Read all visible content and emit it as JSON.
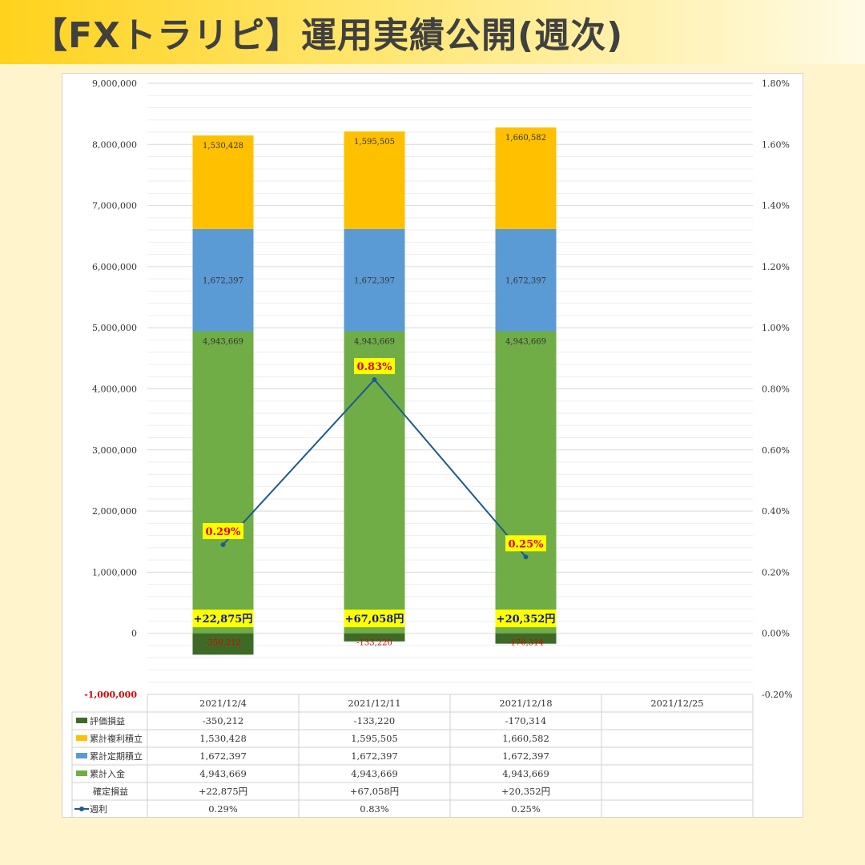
{
  "title": "【FXトラリピ】運用実績公開(週次)",
  "chart_data": {
    "type": "bar",
    "stacked": true,
    "categories": [
      "2021/12/4",
      "2021/12/11",
      "2021/12/18",
      "2021/12/25"
    ],
    "series": [
      {
        "name": "評価損益",
        "color": "#3d6b26",
        "values": [
          -350212,
          -133220,
          -170314,
          null
        ],
        "labels": [
          "-350,212",
          "-133,220",
          "-170,314",
          ""
        ],
        "table": [
          "-350,212",
          "-133,220",
          "-170,314",
          ""
        ]
      },
      {
        "name": "累計複利積立",
        "color": "#ffc000",
        "values": [
          1530428,
          1595505,
          1660582,
          null
        ],
        "labels": [
          "1,530,428",
          "1,595,505",
          "1,660,582",
          ""
        ],
        "table": [
          "1,530,428",
          "1,595,505",
          "1,660,582",
          ""
        ]
      },
      {
        "name": "累計定期積立",
        "color": "#5b9bd5",
        "values": [
          1672397,
          1672397,
          1672397,
          null
        ],
        "labels": [
          "1,672,397",
          "1,672,397",
          "1,672,397",
          ""
        ],
        "table": [
          "1,672,397",
          "1,672,397",
          "1,672,397",
          ""
        ]
      },
      {
        "name": "累計入金",
        "color": "#70ad47",
        "values": [
          4943669,
          4943669,
          4943669,
          null
        ],
        "labels": [
          "4,943,669",
          "4,943,669",
          "4,943,669",
          ""
        ],
        "table": [
          "4,943,669",
          "4,943,669",
          "4,943,669",
          ""
        ]
      }
    ],
    "realized": {
      "name": "確定損益",
      "values": [
        22875,
        67058,
        20352,
        null
      ],
      "labels": [
        "+22,875円",
        "+67,058円",
        "+20,352円",
        ""
      ],
      "table": [
        "+22,875円",
        "+67,058円",
        "+20,352円",
        ""
      ]
    },
    "line": {
      "name": "週利",
      "color": "#1f5b8e",
      "values": [
        0.29,
        0.83,
        0.25,
        null
      ],
      "labels": [
        "0.29%",
        "0.83%",
        "0.25%",
        ""
      ],
      "table": [
        "0.29%",
        "0.83%",
        "0.25%",
        ""
      ]
    },
    "y_left": {
      "min": -1000000,
      "max": 9000000,
      "step": 1000000,
      "ticks": [
        "-1,000,000",
        "0",
        "1,000,000",
        "2,000,000",
        "3,000,000",
        "4,000,000",
        "5,000,000",
        "6,000,000",
        "7,000,000",
        "8,000,000",
        "9,000,000"
      ]
    },
    "y_right": {
      "min": -0.2,
      "max": 1.8,
      "step": 0.2,
      "ticks": [
        "-0.20%",
        "0.00%",
        "0.20%",
        "0.40%",
        "0.60%",
        "0.80%",
        "1.00%",
        "1.20%",
        "1.40%",
        "1.60%",
        "1.80%"
      ]
    },
    "grid": true,
    "legend": "data-table"
  }
}
